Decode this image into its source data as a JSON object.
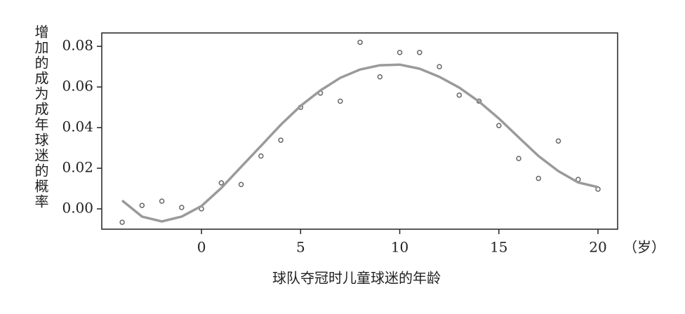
{
  "chart_data": {
    "type": "scatter",
    "y_label": "增加的成为成年球迷的概率",
    "x_label": "球队夺冠时儿童球迷的年龄",
    "x_unit": "（岁）",
    "x": [
      -4,
      -3,
      -2,
      -1,
      0,
      1,
      2,
      3,
      4,
      5,
      6,
      7,
      8,
      9,
      10,
      11,
      12,
      13,
      14,
      15,
      16,
      17,
      18,
      19,
      20
    ],
    "series": [
      {
        "type": "scatter",
        "color": "#666666",
        "values": [
          -0.0066,
          0.0017,
          0.0038,
          0.0007,
          0.0,
          0.0128,
          0.012,
          0.026,
          0.0338,
          0.05,
          0.057,
          0.053,
          0.082,
          0.065,
          0.077,
          0.077,
          0.07,
          0.056,
          0.053,
          0.041,
          0.0248,
          0.015,
          0.0334,
          0.0145,
          0.0097
        ]
      },
      {
        "type": "line",
        "color": "#9a9a9a",
        "values": [
          0.0041,
          -0.0038,
          -0.0062,
          -0.0038,
          0.0014,
          0.0103,
          0.0207,
          0.031,
          0.0414,
          0.0507,
          0.0583,
          0.0645,
          0.0686,
          0.0707,
          0.071,
          0.069,
          0.065,
          0.0597,
          0.0528,
          0.0445,
          0.0352,
          0.026,
          0.0186,
          0.013,
          0.0107
        ]
      }
    ],
    "xlim": [
      -5.03,
      20.99
    ],
    "ylim": [
      -0.01,
      0.0866
    ],
    "xticks": [
      0,
      5,
      10,
      15,
      20
    ],
    "yticks": [
      {
        "value": 0,
        "label": "0.00"
      },
      0.02,
      0.04,
      0.06,
      0.08
    ]
  }
}
